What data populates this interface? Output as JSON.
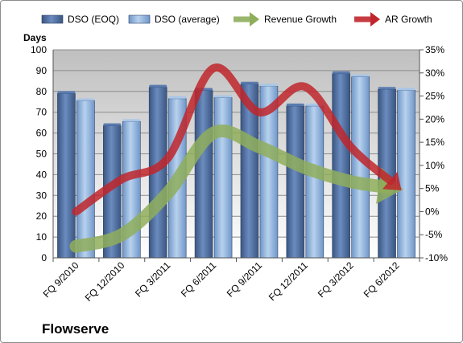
{
  "chart_data": {
    "type": "bar",
    "company": "Flowserve",
    "categories": [
      "FQ 9/2010",
      "FQ 12/2010",
      "FQ 3/2011",
      "FQ 6/2011",
      "FQ 9/2011",
      "FQ 12/2011",
      "FQ 3/2012",
      "FQ 6/2012"
    ],
    "ylabel_left": "Days",
    "ylim_left": [
      0,
      100
    ],
    "yticks_left": [
      "0",
      "10",
      "20",
      "30",
      "40",
      "50",
      "60",
      "70",
      "80",
      "90",
      "100"
    ],
    "ylim_right": [
      -10,
      35
    ],
    "yticks_right": [
      "-10%",
      "-5%",
      "0%",
      "5%",
      "10%",
      "15%",
      "20%",
      "25%",
      "30%",
      "35%"
    ],
    "grid": true,
    "legend_position": "top",
    "bar_series": [
      {
        "name": "DSO (EOQ)",
        "values": [
          79,
          63.5,
          82,
          80.5,
          83.5,
          73,
          88.5,
          81
        ],
        "color": "#4a6a9c"
      },
      {
        "name": "DSO (average)",
        "values": [
          75.5,
          65.5,
          76.5,
          77,
          82.5,
          73,
          87,
          80.5
        ],
        "color": "#8aafd8"
      }
    ],
    "line_series": [
      {
        "name": "Revenue Growth",
        "axis": "right",
        "values": [
          -7.5,
          -5,
          4,
          17,
          14,
          9.5,
          6.5,
          5
        ],
        "color": "#8fae5c"
      },
      {
        "name": "AR Growth",
        "axis": "right",
        "values": [
          0,
          7,
          11.5,
          31,
          21.5,
          27,
          14,
          5.5
        ],
        "color": "#c0262c"
      }
    ]
  }
}
